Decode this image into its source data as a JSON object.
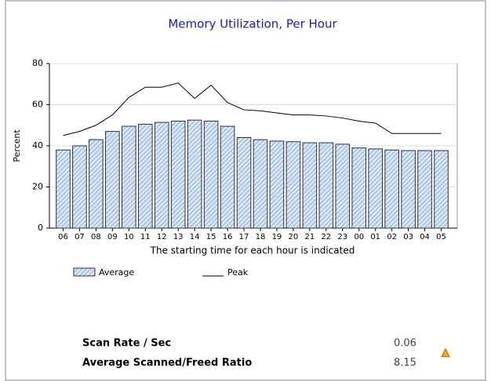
{
  "chart_data": {
    "type": "bar_line",
    "title": "Memory Utilization, Per Hour",
    "y_label": "Percent",
    "x_label": "The starting time for each hour is indicated",
    "categories": [
      "06",
      "07",
      "08",
      "09",
      "10",
      "11",
      "12",
      "13",
      "14",
      "15",
      "16",
      "17",
      "18",
      "19",
      "20",
      "21",
      "22",
      "23",
      "00",
      "01",
      "02",
      "03",
      "04",
      "05"
    ],
    "series": [
      {
        "name": "Average",
        "type": "bar",
        "color": "#d6e6f7",
        "values": [
          38,
          40,
          43,
          47,
          49.5,
          50.5,
          51.4,
          52,
          52.5,
          52,
          49.5,
          44,
          43,
          42.3,
          42,
          41.5,
          41.5,
          40.8,
          39,
          38.5,
          38,
          37.7,
          37.7,
          37.7
        ]
      },
      {
        "name": "Peak",
        "type": "line",
        "color": "#000000",
        "values": [
          45,
          47,
          50,
          55,
          63.5,
          68.5,
          68.5,
          70.5,
          63,
          69.5,
          61,
          57.5,
          57,
          56,
          55,
          55,
          54.5,
          53.5,
          52,
          51,
          46,
          46,
          46,
          46
        ]
      }
    ],
    "ylim": [
      0,
      80
    ],
    "yticks": [
      0,
      20,
      40,
      60,
      80
    ],
    "grid": true
  },
  "stats": [
    {
      "label": "Scan Rate / Sec",
      "value": 0.06
    },
    {
      "label": "Average Scanned/Freed Ratio",
      "value": 8.15
    }
  ]
}
